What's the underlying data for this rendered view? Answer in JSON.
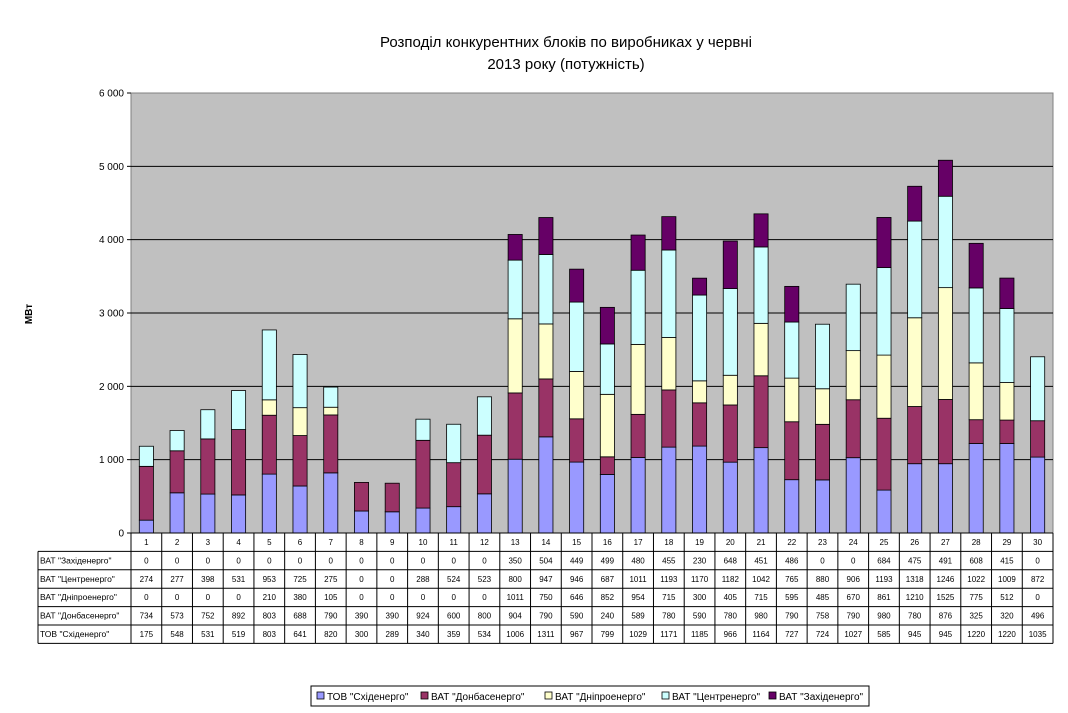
{
  "chart_data": {
    "type": "bar",
    "stacked": true,
    "title": "Розподіл конкурентних блоків по виробниках у червні",
    "title_line2": "2013 року (потужність)",
    "ylabel": "МВт",
    "ylim": [
      0,
      6000
    ],
    "yticks": [
      0,
      1000,
      2000,
      3000,
      4000,
      5000,
      6000
    ],
    "ytick_labels": [
      "0",
      "1 000",
      "2 000",
      "3 000",
      "4 000",
      "5 000",
      "6 000"
    ],
    "grid": true,
    "legend_position": "bottom",
    "categories": [
      "1",
      "2",
      "3",
      "4",
      "5",
      "6",
      "7",
      "8",
      "9",
      "10",
      "11",
      "12",
      "13",
      "14",
      "15",
      "16",
      "17",
      "18",
      "19",
      "20",
      "21",
      "22",
      "23",
      "24",
      "25",
      "26",
      "27",
      "28",
      "29",
      "30"
    ],
    "series": [
      {
        "name": "ТОВ \"Східенерго\"",
        "color": "#9999ff",
        "values": [
          175,
          548,
          531,
          519,
          803,
          641,
          820,
          300,
          289,
          340,
          359,
          534,
          1006,
          1311,
          967,
          799,
          1029,
          1171,
          1185,
          966,
          1164,
          727,
          724,
          1027,
          585,
          945,
          945,
          1220,
          1220,
          1035
        ]
      },
      {
        "name": "ВАТ \"Донбасенерго\"",
        "color": "#993366",
        "values": [
          734,
          573,
          752,
          892,
          803,
          688,
          790,
          390,
          390,
          924,
          600,
          800,
          904,
          790,
          590,
          240,
          589,
          780,
          590,
          780,
          980,
          790,
          758,
          790,
          980,
          780,
          876,
          325,
          320,
          496
        ]
      },
      {
        "name": "ВАТ \"Дніпроенерго\"",
        "color": "#ffffcc",
        "values": [
          0,
          0,
          0,
          0,
          210,
          380,
          105,
          0,
          0,
          0,
          0,
          0,
          1011,
          750,
          646,
          852,
          954,
          715,
          300,
          405,
          715,
          595,
          485,
          670,
          861,
          1210,
          1525,
          775,
          512,
          0
        ]
      },
      {
        "name": "ВАТ \"Центренерго\"",
        "color": "#ccffff",
        "values": [
          274,
          277,
          398,
          531,
          953,
          725,
          275,
          0,
          0,
          288,
          524,
          523,
          800,
          947,
          946,
          687,
          1011,
          1193,
          1170,
          1182,
          1042,
          765,
          880,
          906,
          1193,
          1318,
          1246,
          1022,
          1009,
          872
        ]
      },
      {
        "name": "ВАТ \"Західенерго\"",
        "color": "#660066",
        "values": [
          0,
          0,
          0,
          0,
          0,
          0,
          0,
          0,
          0,
          0,
          0,
          0,
          350,
          504,
          449,
          499,
          480,
          455,
          230,
          648,
          451,
          486,
          0,
          0,
          684,
          475,
          491,
          608,
          415,
          0
        ]
      }
    ]
  }
}
